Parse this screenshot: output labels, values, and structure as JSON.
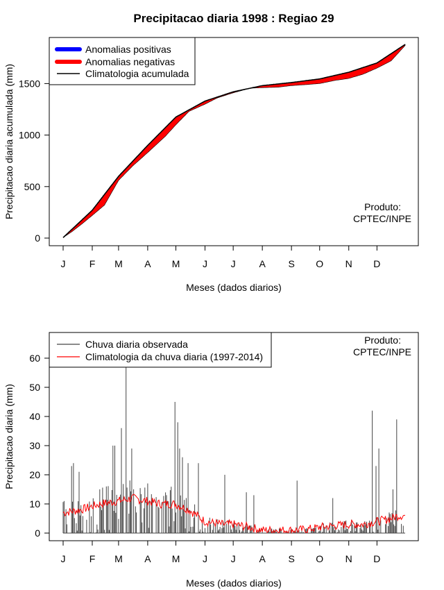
{
  "title": "Precipitacao diaria 1998 : Regiao 29",
  "colors": {
    "positive": "#0000ff",
    "negative": "#ff0000",
    "line": "#000000",
    "bars": "#444444",
    "clim": "#ff0000"
  },
  "chart_data": [
    {
      "type": "area",
      "ylabel": "Precipitacao diaria acumulada (mm)",
      "xlabel": "Meses (dados diarios)",
      "xlim": [
        1,
        365
      ],
      "ylim": [
        0,
        1880
      ],
      "yticks": [
        0,
        500,
        1000,
        1500
      ],
      "month_labels": [
        "J",
        "F",
        "M",
        "A",
        "M",
        "J",
        "J",
        "A",
        "S",
        "O",
        "N",
        "D"
      ],
      "month_days": [
        1,
        32,
        60,
        91,
        121,
        152,
        182,
        213,
        244,
        274,
        305,
        335
      ],
      "legend": [
        "Anomalias positivas",
        "Anomalias negativas",
        "Climatologia acumulada"
      ],
      "annotation": [
        "Produto:",
        "CPTEC/INPE"
      ],
      "climatology_points": [
        [
          1,
          5
        ],
        [
          32,
          270
        ],
        [
          60,
          600
        ],
        [
          91,
          900
        ],
        [
          121,
          1175
        ],
        [
          152,
          1330
        ],
        [
          182,
          1420
        ],
        [
          213,
          1480
        ],
        [
          244,
          1510
        ],
        [
          274,
          1545
        ],
        [
          305,
          1610
        ],
        [
          335,
          1700
        ],
        [
          365,
          1880
        ]
      ],
      "observed_points": [
        [
          1,
          5
        ],
        [
          10,
          60
        ],
        [
          20,
          130
        ],
        [
          32,
          220
        ],
        [
          45,
          320
        ],
        [
          60,
          560
        ],
        [
          75,
          700
        ],
        [
          91,
          830
        ],
        [
          110,
          990
        ],
        [
          121,
          1100
        ],
        [
          135,
          1230
        ],
        [
          152,
          1300
        ],
        [
          165,
          1360
        ],
        [
          182,
          1410
        ],
        [
          200,
          1455
        ],
        [
          213,
          1460
        ],
        [
          230,
          1465
        ],
        [
          244,
          1480
        ],
        [
          260,
          1490
        ],
        [
          274,
          1500
        ],
        [
          290,
          1530
        ],
        [
          305,
          1550
        ],
        [
          320,
          1590
        ],
        [
          335,
          1650
        ],
        [
          350,
          1720
        ],
        [
          365,
          1870
        ]
      ]
    },
    {
      "type": "bar",
      "ylabel": "Precipitacao diaria (mm)",
      "xlabel": "Meses (dados diarios)",
      "xlim": [
        1,
        365
      ],
      "ylim": [
        0,
        68
      ],
      "yticks": [
        0,
        10,
        20,
        30,
        40,
        50,
        60
      ],
      "month_labels": [
        "J",
        "F",
        "M",
        "A",
        "M",
        "J",
        "J",
        "A",
        "S",
        "O",
        "N",
        "D"
      ],
      "month_days": [
        1,
        32,
        60,
        91,
        121,
        152,
        182,
        213,
        244,
        274,
        305,
        335
      ],
      "legend": [
        "Chuva diaria observada",
        "Climatologia da chuva diaria (1997-2014)"
      ],
      "annotation": [
        "Produto:",
        "CPTEC/INPE"
      ],
      "peaks": [
        [
          10,
          23
        ],
        [
          12,
          24
        ],
        [
          18,
          21
        ],
        [
          40,
          15
        ],
        [
          47,
          16
        ],
        [
          54,
          30
        ],
        [
          56,
          30
        ],
        [
          63,
          36
        ],
        [
          68,
          58
        ],
        [
          74,
          29
        ],
        [
          120,
          45
        ],
        [
          123,
          38
        ],
        [
          125,
          29
        ],
        [
          128,
          26
        ],
        [
          134,
          24
        ],
        [
          145,
          24
        ],
        [
          173,
          20
        ],
        [
          196,
          14
        ],
        [
          204,
          13
        ],
        [
          250,
          18
        ],
        [
          288,
          12
        ],
        [
          330,
          42
        ],
        [
          334,
          23
        ],
        [
          337,
          29
        ],
        [
          352,
          15
        ],
        [
          356,
          39
        ]
      ],
      "climatology_points": [
        [
          1,
          7
        ],
        [
          20,
          8
        ],
        [
          40,
          10
        ],
        [
          60,
          11
        ],
        [
          75,
          12
        ],
        [
          90,
          11
        ],
        [
          105,
          10
        ],
        [
          120,
          10
        ],
        [
          135,
          8
        ],
        [
          152,
          4
        ],
        [
          170,
          3
        ],
        [
          182,
          3
        ],
        [
          200,
          2
        ],
        [
          213,
          1
        ],
        [
          230,
          1
        ],
        [
          244,
          1
        ],
        [
          260,
          1.2
        ],
        [
          274,
          2
        ],
        [
          290,
          2.5
        ],
        [
          305,
          3
        ],
        [
          320,
          3
        ],
        [
          335,
          4
        ],
        [
          350,
          5
        ],
        [
          358,
          6
        ],
        [
          365,
          6
        ]
      ]
    }
  ]
}
